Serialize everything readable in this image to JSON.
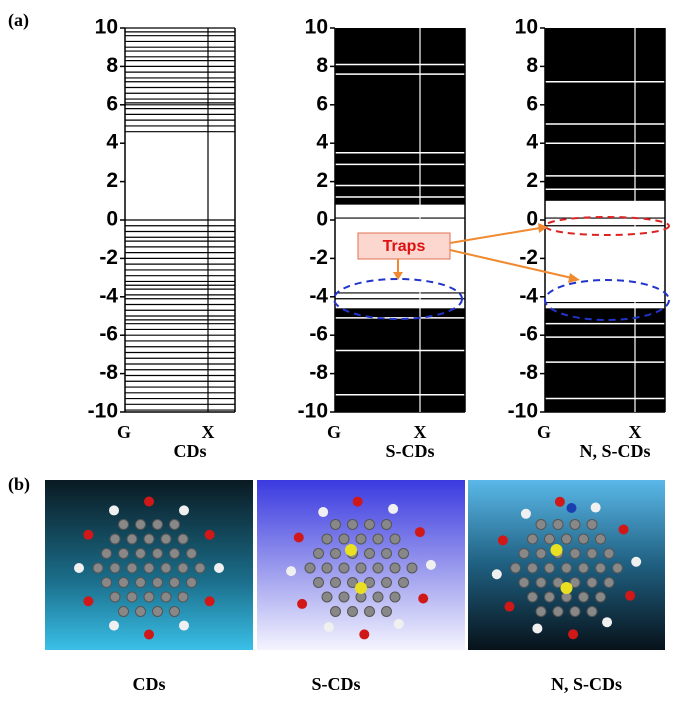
{
  "panel_a_label": "(a)",
  "panel_b_label": "(b)",
  "annotation": "Traps",
  "chart_data": [
    {
      "type": "band",
      "xlabel": "CDs",
      "categories": [
        "G",
        "X"
      ],
      "ylim": [
        -10,
        10
      ],
      "yticks": [
        -10,
        -8,
        -6,
        -4,
        -2,
        0,
        2,
        4,
        6,
        8,
        10
      ],
      "bands": [],
      "levels": [
        4.6,
        4.9,
        5.2,
        5.5,
        5.8,
        6.0,
        6.1,
        6.3,
        6.6,
        6.9,
        7.2,
        7.4,
        7.7,
        8.0,
        8.3,
        8.5,
        8.8,
        9.0,
        9.3,
        9.6,
        9.8,
        10,
        0,
        -0.3,
        -0.6,
        -0.9,
        -1.1,
        -1.4,
        -1.7,
        -2.0,
        -2.3,
        -2.6,
        -2.9,
        -3.2,
        -3.4,
        -3.6,
        -3.9,
        -4.1,
        -4.4,
        -4.7,
        -5.0,
        -5.2,
        -5.4,
        -5.7,
        -6.0,
        -6.3,
        -6.6,
        -6.9,
        -7.2,
        -7.5,
        -7.8,
        -8.1,
        -8.4,
        -8.7,
        -9.0,
        -9.3,
        -9.6,
        -9.9
      ],
      "gaps": []
    },
    {
      "type": "band",
      "xlabel": "S-CDs",
      "categories": [
        "G",
        "X"
      ],
      "ylim": [
        -10,
        10
      ],
      "yticks": [
        -10,
        -8,
        -6,
        -4,
        -2,
        0,
        2,
        4,
        6,
        8,
        10
      ],
      "bands": [
        [
          0.8,
          10
        ],
        [
          -10,
          -4.6
        ]
      ],
      "levels": [
        0.1,
        -3.8,
        -4.1
      ],
      "gaps": [
        7.6,
        8.1,
        3.5,
        2.9,
        1.8,
        1.2,
        -5.1,
        -6.8,
        -9.1
      ]
    },
    {
      "type": "band",
      "xlabel": "N, S-CDs",
      "categories": [
        "G",
        "X"
      ],
      "ylim": [
        -10,
        10
      ],
      "yticks": [
        -10,
        -8,
        -6,
        -4,
        -2,
        0,
        2,
        4,
        6,
        8,
        10
      ],
      "bands": [
        [
          1,
          10
        ],
        [
          -10,
          -4.6
        ]
      ],
      "levels": [
        0.1,
        -0.3,
        -4.3
      ],
      "gaps": [
        7.2,
        5.0,
        4.0,
        2.3,
        1.6,
        -5.4,
        -6.1,
        -7.4,
        -9.3
      ]
    }
  ],
  "images": [
    {
      "caption": "CDs"
    },
    {
      "caption": "S-CDs"
    },
    {
      "caption": "N, S-CDs"
    }
  ]
}
